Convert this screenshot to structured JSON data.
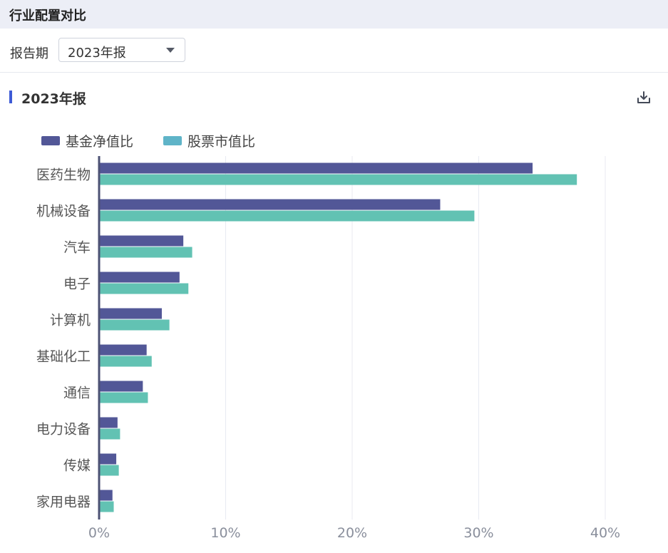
{
  "header": {
    "title": "行业配置对比"
  },
  "filter": {
    "label": "报告期",
    "selected": "2023年报"
  },
  "panel": {
    "title": "2023年报",
    "download_icon": "download-icon"
  },
  "colors": {
    "accent": "#3e5bd6",
    "series1": "#525797",
    "series2": "#62c2b3"
  },
  "legend": [
    {
      "name": "基金净值比",
      "color": "#525797"
    },
    {
      "name": "股票市值比",
      "color": "#5fb4c8"
    }
  ],
  "chart_data": {
    "type": "bar",
    "orientation": "horizontal",
    "categories": [
      "医药生物",
      "机械设备",
      "汽车",
      "电子",
      "计算机",
      "基础化工",
      "通信",
      "电力设备",
      "传媒",
      "家用电器"
    ],
    "series": [
      {
        "name": "基金净值比",
        "values": [
          34.2,
          26.9,
          6.6,
          6.3,
          4.9,
          3.7,
          3.4,
          1.4,
          1.3,
          1.0
        ]
      },
      {
        "name": "股票市值比",
        "values": [
          37.7,
          29.6,
          7.3,
          7.0,
          5.5,
          4.1,
          3.8,
          1.6,
          1.5,
          1.1
        ]
      }
    ],
    "xlim": [
      0,
      45
    ],
    "xticks": [
      0,
      10,
      20,
      30,
      40
    ],
    "tick_labels": [
      "0%",
      "10%",
      "20%",
      "30%",
      "40%"
    ],
    "grid": true,
    "legend_position": "top-left"
  }
}
